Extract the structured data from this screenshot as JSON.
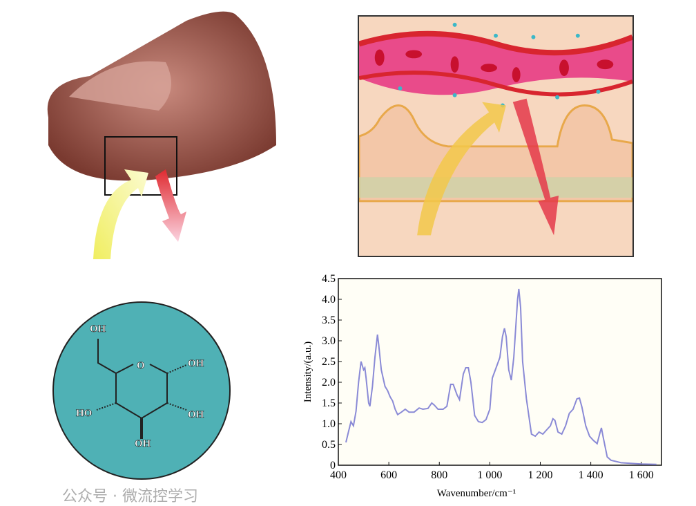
{
  "molecule": {
    "labels": [
      "OH",
      "O",
      "OH",
      "HO",
      "OH",
      "OH"
    ]
  },
  "watermark": "公众号 · 微流控学习",
  "colors": {
    "line": "#8a8ad6",
    "molecule_bg": "#4fb1b5",
    "blood": "#d8252f",
    "arrow_in": "#f2e24a",
    "arrow_out": "#e43a4a"
  },
  "chart_data": {
    "type": "line",
    "xlabel": "Wavenumber/cm⁻¹",
    "ylabel": "Intensity/(a.u.)",
    "xlim": [
      400,
      1680
    ],
    "ylim": [
      0,
      4.5
    ],
    "xticks": [
      "400",
      "600",
      "800",
      "1 000",
      "1 200",
      "1 400",
      "1 600"
    ],
    "xtick_values": [
      400,
      600,
      800,
      1000,
      1200,
      1400,
      1600
    ],
    "yticks": [
      "0",
      "0.5",
      "1.0",
      "1.5",
      "2.0",
      "2.5",
      "3.0",
      "3.5",
      "4.0",
      "4.5"
    ],
    "ytick_values": [
      0,
      0.5,
      1,
      1.5,
      2,
      2.5,
      3,
      3.5,
      4,
      4.5
    ],
    "grid": false,
    "series": [
      {
        "x": [
          430,
          440,
          450,
          460,
          470,
          480,
          490,
          500,
          505,
          510,
          520,
          525,
          535,
          545,
          555,
          560,
          570,
          585,
          595,
          605,
          615,
          625,
          635,
          650,
          665,
          680,
          700,
          720,
          735,
          755,
          770,
          780,
          795,
          815,
          830,
          845,
          855,
          870,
          880,
          895,
          905,
          915,
          925,
          940,
          955,
          970,
          985,
          1000,
          1010,
          1025,
          1040,
          1050,
          1058,
          1065,
          1075,
          1085,
          1095,
          1110,
          1115,
          1122,
          1130,
          1145,
          1165,
          1180,
          1195,
          1210,
          1225,
          1240,
          1250,
          1258,
          1270,
          1285,
          1300,
          1315,
          1330,
          1345,
          1355,
          1365,
          1380,
          1395,
          1410,
          1425,
          1437,
          1442,
          1450,
          1465,
          1480,
          1520,
          1600,
          1660
        ],
        "y": [
          0.55,
          0.8,
          1.05,
          0.95,
          1.3,
          2.0,
          2.5,
          2.3,
          2.35,
          2.1,
          1.5,
          1.42,
          1.9,
          2.6,
          3.15,
          2.9,
          2.3,
          1.9,
          1.8,
          1.65,
          1.55,
          1.35,
          1.22,
          1.28,
          1.35,
          1.28,
          1.28,
          1.38,
          1.35,
          1.37,
          1.5,
          1.45,
          1.35,
          1.35,
          1.42,
          1.95,
          1.95,
          1.7,
          1.58,
          2.2,
          2.35,
          2.35,
          2.0,
          1.2,
          1.05,
          1.03,
          1.1,
          1.35,
          2.1,
          2.35,
          2.6,
          3.1,
          3.3,
          3.1,
          2.3,
          2.05,
          2.6,
          4.0,
          4.25,
          3.8,
          2.5,
          1.6,
          0.75,
          0.7,
          0.8,
          0.75,
          0.85,
          0.95,
          1.12,
          1.08,
          0.8,
          0.75,
          0.95,
          1.25,
          1.35,
          1.6,
          1.62,
          1.4,
          0.95,
          0.7,
          0.6,
          0.52,
          0.8,
          0.9,
          0.65,
          0.2,
          0.12,
          0.06,
          0.03,
          0.02
        ]
      }
    ]
  }
}
